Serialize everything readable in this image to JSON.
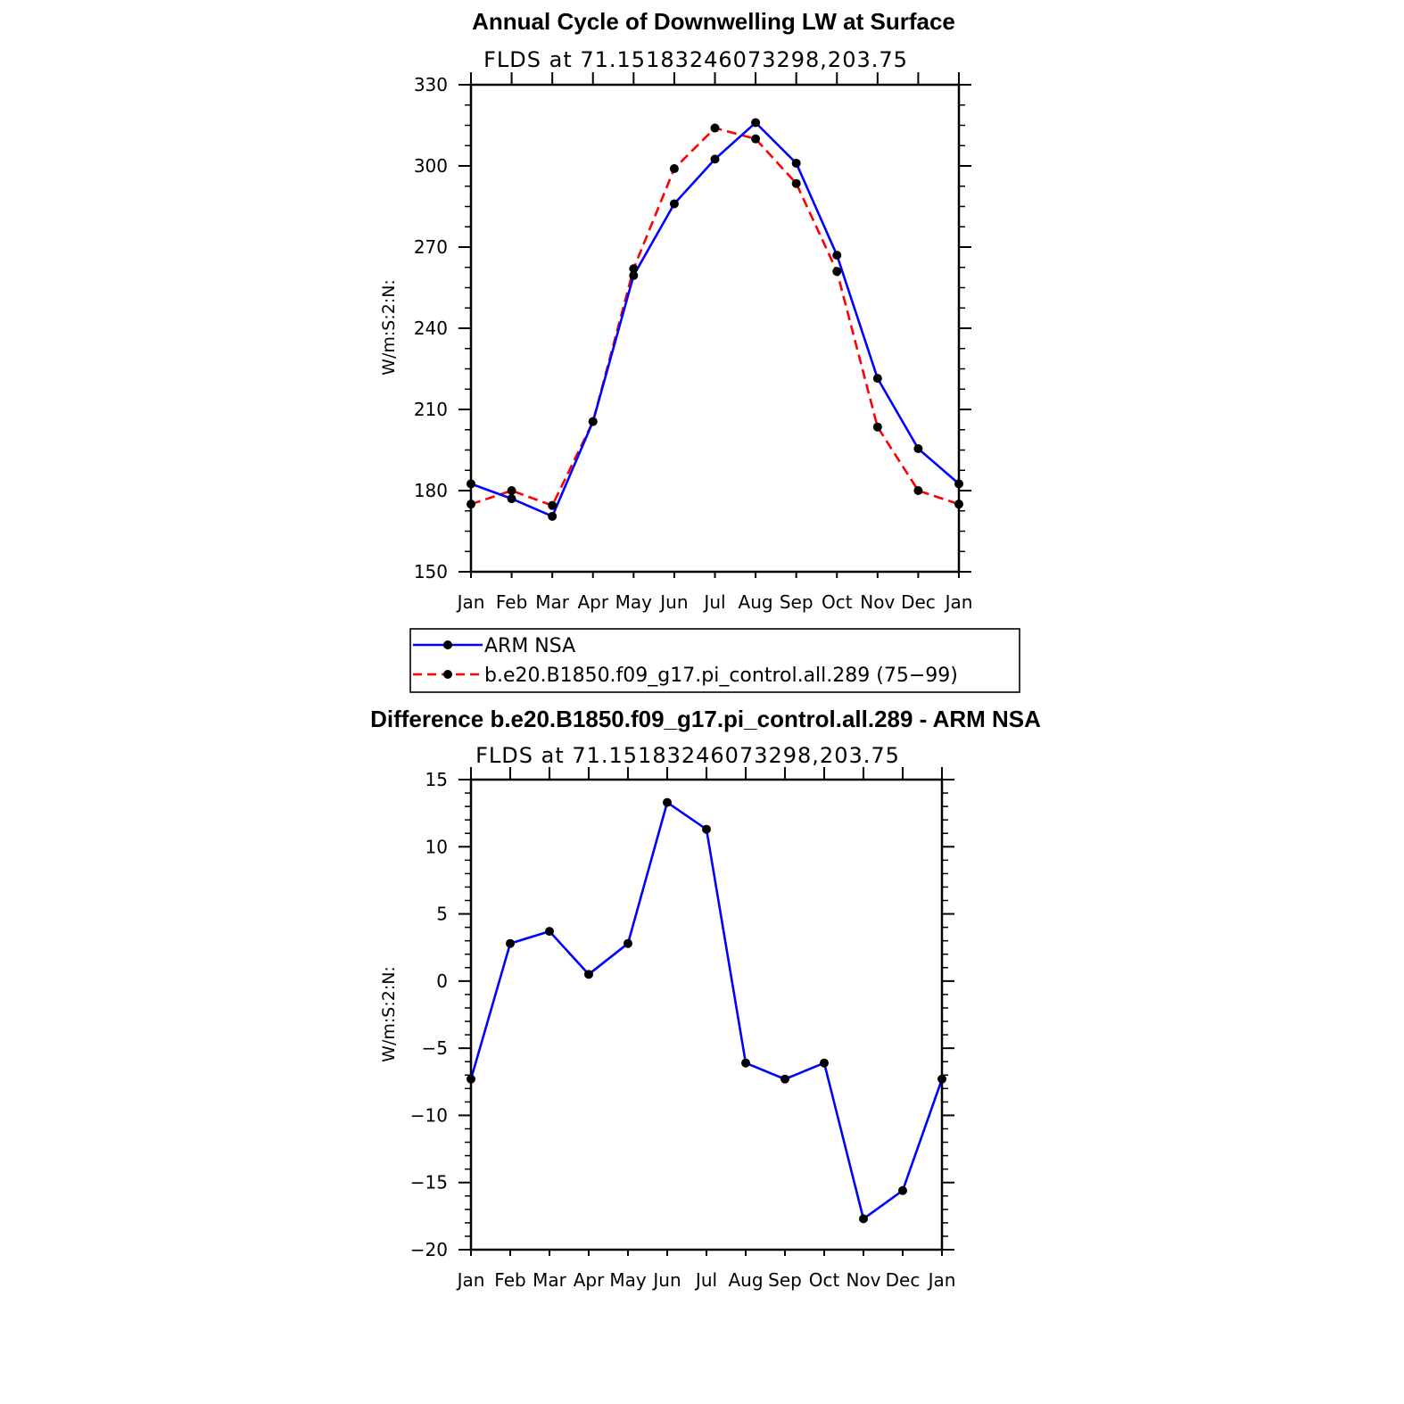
{
  "chart_data": [
    {
      "type": "line",
      "title": "Annual Cycle of Downwelling LW at Surface",
      "subtitle": "FLDS at 71.15183246073298,203.75",
      "ylabel": "W/m:S:2:N:",
      "ylim": [
        150,
        330
      ],
      "yticks": [
        "150",
        "180",
        "210",
        "240",
        "270",
        "300",
        "330"
      ],
      "categories": [
        "Jan",
        "Feb",
        "Mar",
        "Apr",
        "May",
        "Jun",
        "Jul",
        "Aug",
        "Sep",
        "Oct",
        "Nov",
        "Dec",
        "Jan"
      ],
      "series": [
        {
          "name": "ARM NSA",
          "color": "#0000ff",
          "dash": "solid",
          "values": [
            182.5,
            177,
            170.5,
            205.5,
            259.5,
            286,
            302.5,
            316,
            301,
            267,
            221.5,
            195.5,
            182.5
          ]
        },
        {
          "name": "b.e20.B1850.f09_g17.pi_control.all.289 (75−99)",
          "color": "#ff0000",
          "dash": "dashed",
          "values": [
            175,
            180,
            174.5,
            205.5,
            262,
            299,
            314,
            310,
            293.5,
            261,
            203.5,
            180,
            175
          ]
        }
      ],
      "legend": "below"
    },
    {
      "type": "line",
      "title": "Difference b.e20.B1850.f09_g17.pi_control.all.289 - ARM NSA",
      "subtitle": "FLDS at 71.15183246073298,203.75",
      "ylabel": "W/m:S:2:N:",
      "ylim": [
        -20,
        15
      ],
      "yticks": [
        "−20",
        "−15",
        "−10",
        "−5",
        "0",
        "5",
        "10",
        "15"
      ],
      "categories": [
        "Jan",
        "Feb",
        "Mar",
        "Apr",
        "May",
        "Jun",
        "Jul",
        "Aug",
        "Sep",
        "Oct",
        "Nov",
        "Dec",
        "Jan"
      ],
      "series": [
        {
          "color": "#0000ff",
          "dash": "solid",
          "values": [
            -7.3,
            2.8,
            3.7,
            0.5,
            2.8,
            13.3,
            11.3,
            -6.1,
            -7.3,
            -6.1,
            -17.7,
            -15.6,
            -7.3
          ]
        }
      ]
    }
  ]
}
